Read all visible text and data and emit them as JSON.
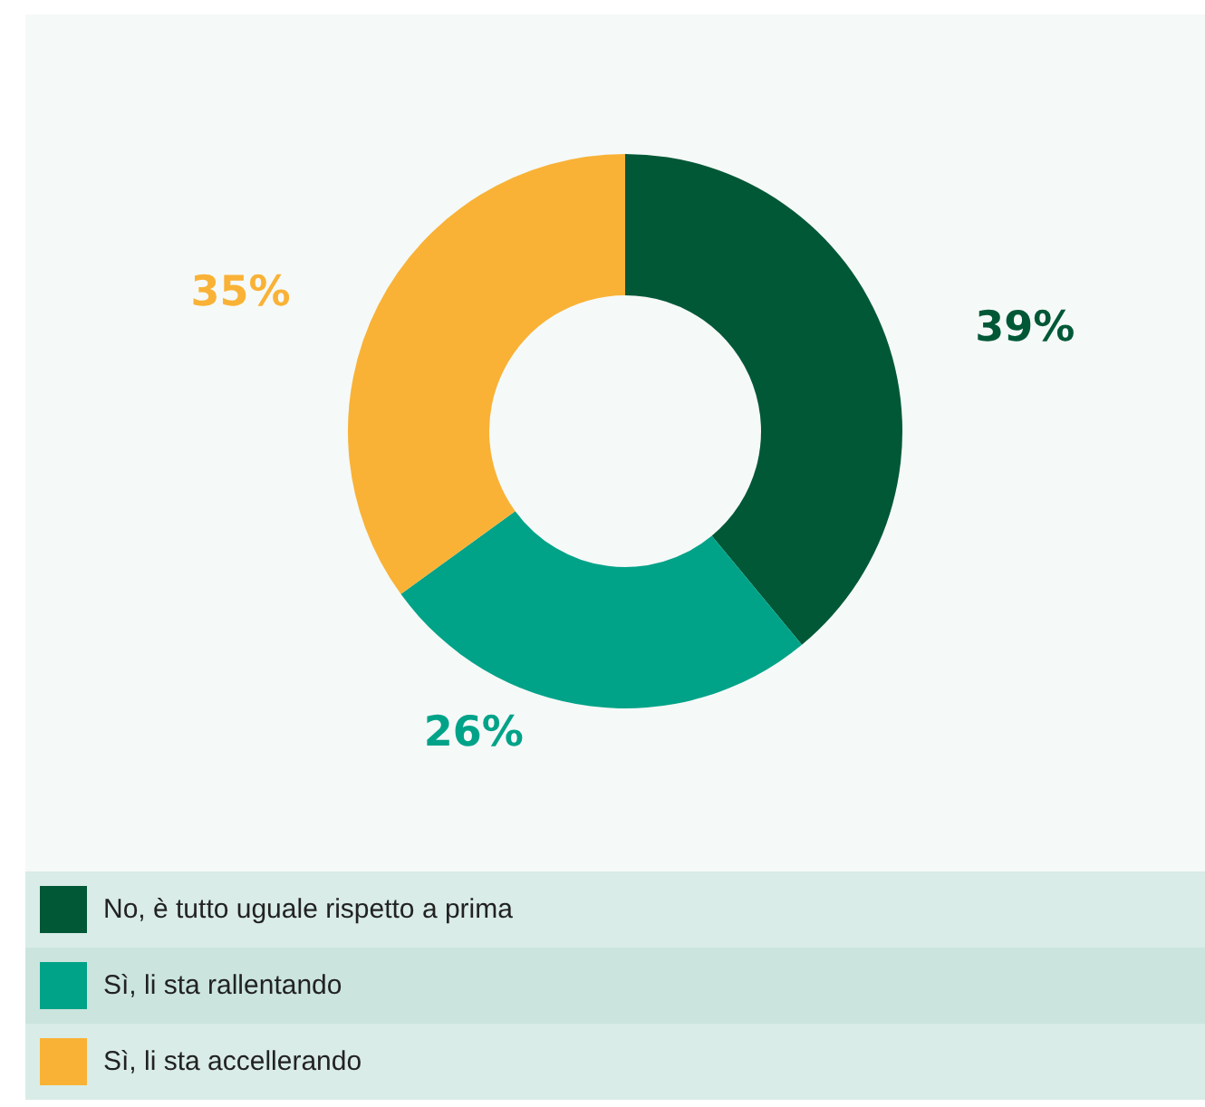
{
  "chart_data": {
    "type": "donut",
    "categories": [
      "No, è tutto uguale rispetto a prima",
      "Sì, li sta rallentando",
      "Sì, li sta accellerando"
    ],
    "values": [
      39,
      26,
      35
    ],
    "colors": [
      "#005837",
      "#00a388",
      "#f9b236"
    ],
    "value_labels": [
      "39%",
      "26%",
      "35%"
    ],
    "legend": "bottom"
  }
}
